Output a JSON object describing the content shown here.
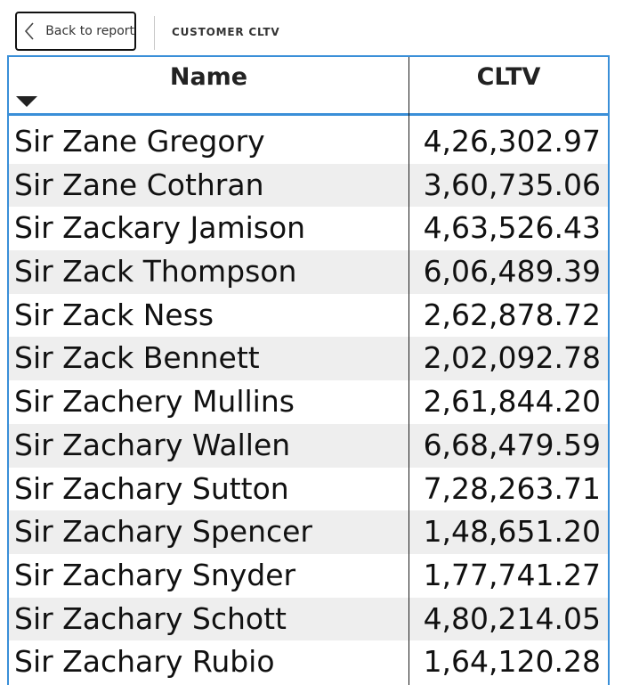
{
  "header": {
    "back_label": "Back to report",
    "page_title": "CUSTOMER CLTV"
  },
  "table": {
    "columns": [
      "Name",
      "CLTV"
    ],
    "sort_column": "Name",
    "sort_direction": "descending",
    "rows": [
      {
        "name": "Sir Zane Gregory",
        "cltv": "4,26,302.97"
      },
      {
        "name": "Sir Zane Cothran",
        "cltv": "3,60,735.06"
      },
      {
        "name": "Sir Zackary Jamison",
        "cltv": "4,63,526.43"
      },
      {
        "name": "Sir Zack Thompson",
        "cltv": "6,06,489.39"
      },
      {
        "name": "Sir Zack Ness",
        "cltv": "2,62,878.72"
      },
      {
        "name": "Sir Zack Bennett",
        "cltv": "2,02,092.78"
      },
      {
        "name": "Sir Zachery Mullins",
        "cltv": "2,61,844.20"
      },
      {
        "name": "Sir Zachary Wallen",
        "cltv": "6,68,479.59"
      },
      {
        "name": "Sir Zachary Sutton",
        "cltv": "7,28,263.71"
      },
      {
        "name": "Sir Zachary Spencer",
        "cltv": "1,48,651.20"
      },
      {
        "name": "Sir Zachary Snyder",
        "cltv": "1,77,741.27"
      },
      {
        "name": "Sir Zachary Schott",
        "cltv": "4,80,214.05"
      },
      {
        "name": "Sir Zachary Rubio",
        "cltv": "1,64,120.28"
      }
    ]
  },
  "colors": {
    "accent_border": "#3a8fd8",
    "row_alt": "#eeeeee",
    "text": "#111111"
  },
  "icons": {
    "back": "chevron-left-icon",
    "sort": "sort-descending-icon"
  }
}
